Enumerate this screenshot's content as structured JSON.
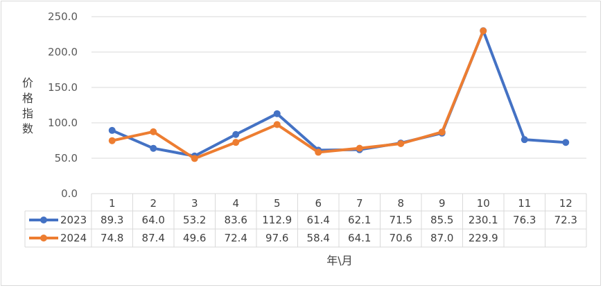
{
  "chart_data": {
    "type": "line",
    "title": "",
    "ylabel": "价格指数",
    "xlabel": "年\\月",
    "ylim": [
      0,
      250
    ],
    "yticks": [
      "0.0",
      "50.0",
      "100.0",
      "150.0",
      "200.0",
      "250.0"
    ],
    "grid": true,
    "legend": "data-table",
    "categories": [
      "1",
      "2",
      "3",
      "4",
      "5",
      "6",
      "7",
      "8",
      "9",
      "10",
      "11",
      "12"
    ],
    "series": [
      {
        "name": "2023",
        "color": "#4472C4",
        "values": [
          89.3,
          64.0,
          53.2,
          83.6,
          112.9,
          61.4,
          62.1,
          71.5,
          85.5,
          230.1,
          76.3,
          72.3
        ],
        "labels": [
          "89.3",
          "64.0",
          "53.2",
          "83.6",
          "112.9",
          "61.4",
          "62.1",
          "71.5",
          "85.5",
          "230.1",
          "76.3",
          "72.3"
        ]
      },
      {
        "name": "2024",
        "color": "#ED7D31",
        "values": [
          74.8,
          87.4,
          49.6,
          72.4,
          97.6,
          58.4,
          64.1,
          70.6,
          87.0,
          229.9,
          null,
          null
        ],
        "labels": [
          "74.8",
          "87.4",
          "49.6",
          "72.4",
          "97.6",
          "58.4",
          "64.1",
          "70.6",
          "87.0",
          "229.9",
          "",
          ""
        ]
      }
    ]
  }
}
